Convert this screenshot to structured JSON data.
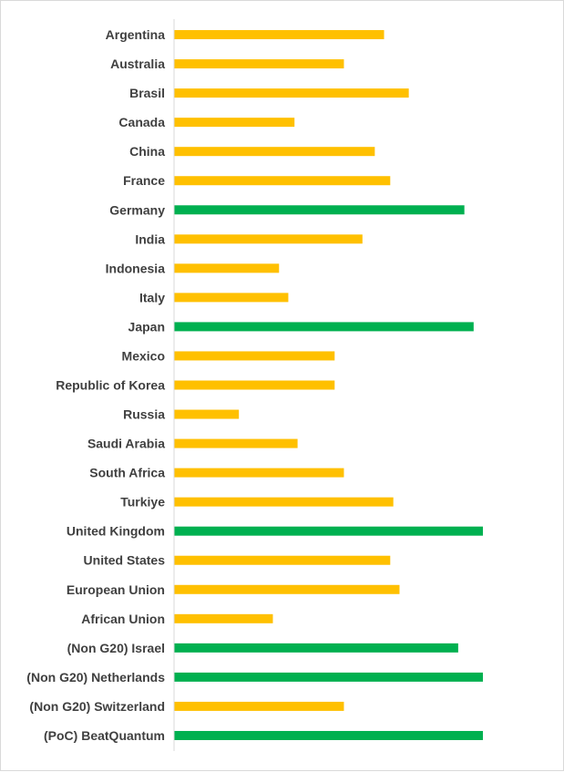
{
  "chart_data": {
    "type": "bar",
    "orientation": "horizontal",
    "title": "",
    "xlabel": "",
    "ylabel": "",
    "xlim": [
      0,
      100
    ],
    "grid": false,
    "legend": "none",
    "colors": {
      "yellow": "#ffc000",
      "green": "#00b050",
      "axis": "#d9d9d9",
      "label": "#404040"
    },
    "categories": [
      "Argentina",
      "Australia",
      "Brasil",
      "Canada",
      "China",
      "France",
      "Germany",
      "India",
      "Indonesia",
      "Italy",
      "Japan",
      "Mexico",
      "Republic of Korea",
      "Russia",
      "Saudi Arabia",
      "South Africa",
      "Turkiye",
      "United Kingdom",
      "United States",
      "European Union",
      "African Union",
      "(Non G20) Israel",
      "(Non G20) Netherlands",
      "(Non G20) Switzerland",
      "(PoC) BeatQuantum"
    ],
    "values": [
      68,
      55,
      76,
      39,
      65,
      70,
      94,
      61,
      34,
      37,
      97,
      52,
      52,
      21,
      40,
      55,
      71,
      100,
      70,
      73,
      32,
      92,
      100,
      55,
      100
    ],
    "bar_colors": [
      "yellow",
      "yellow",
      "yellow",
      "yellow",
      "yellow",
      "yellow",
      "green",
      "yellow",
      "yellow",
      "yellow",
      "green",
      "yellow",
      "yellow",
      "yellow",
      "yellow",
      "yellow",
      "yellow",
      "green",
      "yellow",
      "yellow",
      "yellow",
      "green",
      "green",
      "yellow",
      "green"
    ]
  }
}
